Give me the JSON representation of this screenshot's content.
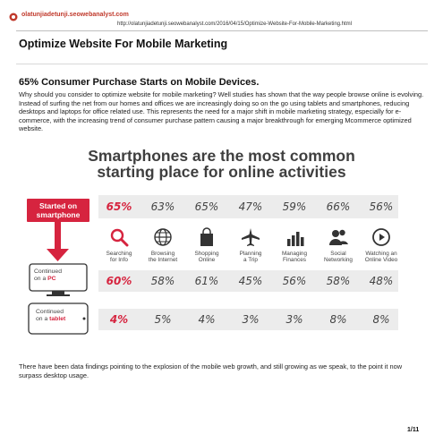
{
  "header": {
    "site_name": "olatunjiadetunji.seowebanalyst.com",
    "url": "http://olatunjiadetunji.seowebanalyst.com/2016/04/15/Optimize-Website-For-Mobile-Marketing.html"
  },
  "article": {
    "title": "Optimize Website For Mobile Marketing",
    "subtitle": "65% Consumer Purchase Starts on Mobile Devices.",
    "intro": "Why should you consider to optimize website for mobile marketing? Well studies has shown that the way people browse online is evolving. Instead of surfing the net from our homes and offices we are increasingly doing so on the go using tablets and smartphones, reducing desktops and laptops for office related use. This represents the need for a major shift in mobile marketing strategy, especially for e-commerce, with the increasing trend of consumer purchase pattern causing a major breakthrough for emerging Mcommerce optimized website.",
    "closing": "There have been data findings pointing to the explosion of the mobile web growth, and still growing as we speak, to the point it now surpass desktop usage."
  },
  "infographic": {
    "title_line1": "Smartphones are the most common",
    "title_line2": "starting place for online activities",
    "smartphone_label_1": "Started on",
    "smartphone_label_2": "smartphone",
    "pc_label_1": "Continued",
    "pc_label_2": "on a ",
    "pc_label_3": "PC",
    "tablet_label_1": "Continued",
    "tablet_label_2": "on a ",
    "tablet_label_3": "tablet",
    "accent_color": "#d6243f",
    "activities": [
      {
        "l1": "Searching",
        "l2": "for Info",
        "icon": "search-icon"
      },
      {
        "l1": "Browsing",
        "l2": "the Internet",
        "icon": "globe-icon"
      },
      {
        "l1": "Shopping",
        "l2": "Online",
        "icon": "shopping-bag-icon"
      },
      {
        "l1": "Planning",
        "l2": "a Trip",
        "icon": "airplane-icon"
      },
      {
        "l1": "Managing",
        "l2": "Finances",
        "icon": "bar-chart-icon"
      },
      {
        "l1": "Social",
        "l2": "Networking",
        "icon": "people-icon"
      },
      {
        "l1": "Watching an",
        "l2": "Online Video",
        "icon": "play-icon"
      }
    ]
  },
  "chart_data": {
    "type": "table",
    "title": "Smartphones are the most common starting place for online activities",
    "categories": [
      "Searching for Info",
      "Browsing the Internet",
      "Shopping Online",
      "Planning a Trip",
      "Managing Finances",
      "Social Networking",
      "Watching an Online Video"
    ],
    "series": [
      {
        "name": "Started on smartphone",
        "values": [
          65,
          63,
          65,
          47,
          59,
          66,
          56
        ],
        "labels": [
          "65%",
          "63%",
          "65%",
          "47%",
          "59%",
          "66%",
          "56%"
        ]
      },
      {
        "name": "Continued on a PC",
        "values": [
          60,
          58,
          61,
          45,
          56,
          58,
          48
        ],
        "labels": [
          "60%",
          "58%",
          "61%",
          "45%",
          "56%",
          "58%",
          "48%"
        ]
      },
      {
        "name": "Continued on a tablet",
        "values": [
          4,
          5,
          4,
          3,
          3,
          8,
          8
        ],
        "labels": [
          "4%",
          "5%",
          "4%",
          "3%",
          "3%",
          "8%",
          "8%"
        ]
      }
    ]
  },
  "footer": {
    "page": "1/11"
  }
}
